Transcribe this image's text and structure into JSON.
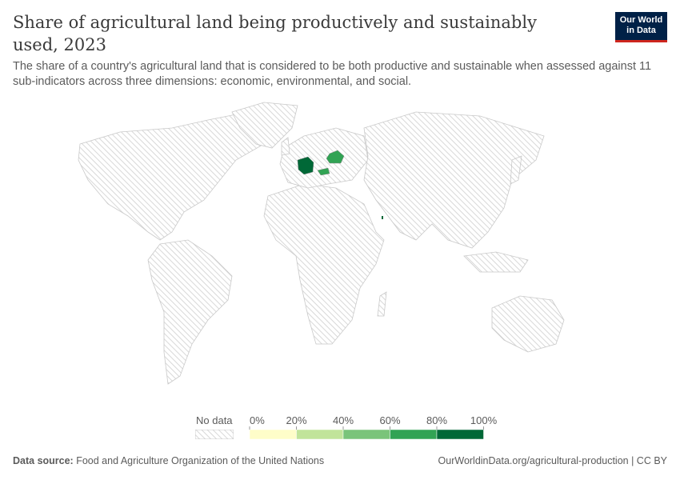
{
  "title": "Share of agricultural land being productively and sustainably used, 2023",
  "subtitle": "The share of a country's agricultural land that is considered to be both productive and sustainable when assessed against 11 sub-indicators across three dimensions: economic, environmental, and social.",
  "logo": "Our World in Data",
  "legend": {
    "no_data": "No data",
    "ticks": [
      "0%",
      "20%",
      "40%",
      "60%",
      "80%",
      "100%"
    ],
    "colors": [
      "#fefdc9",
      "#c1e49a",
      "#7ac47a",
      "#31a354",
      "#006837"
    ],
    "no_data_pattern": "hatched-grey"
  },
  "map_data": {
    "year": 2023,
    "unit": "%",
    "countries": [
      {
        "name": "Germany",
        "bin": "80-100%",
        "color": "#006837"
      },
      {
        "name": "Belarus",
        "bin": "60-80%",
        "color": "#31a354"
      },
      {
        "name": "Hungary",
        "bin": "60-80%",
        "color": "#31a354"
      },
      {
        "name": "Qatar",
        "bin": "80-100%",
        "color": "#006837"
      }
    ]
  },
  "footer": {
    "source_label": "Data source:",
    "source": "Food and Agriculture Organization of the United Nations",
    "url": "OurWorldinData.org/agricultural-production | CC BY"
  }
}
